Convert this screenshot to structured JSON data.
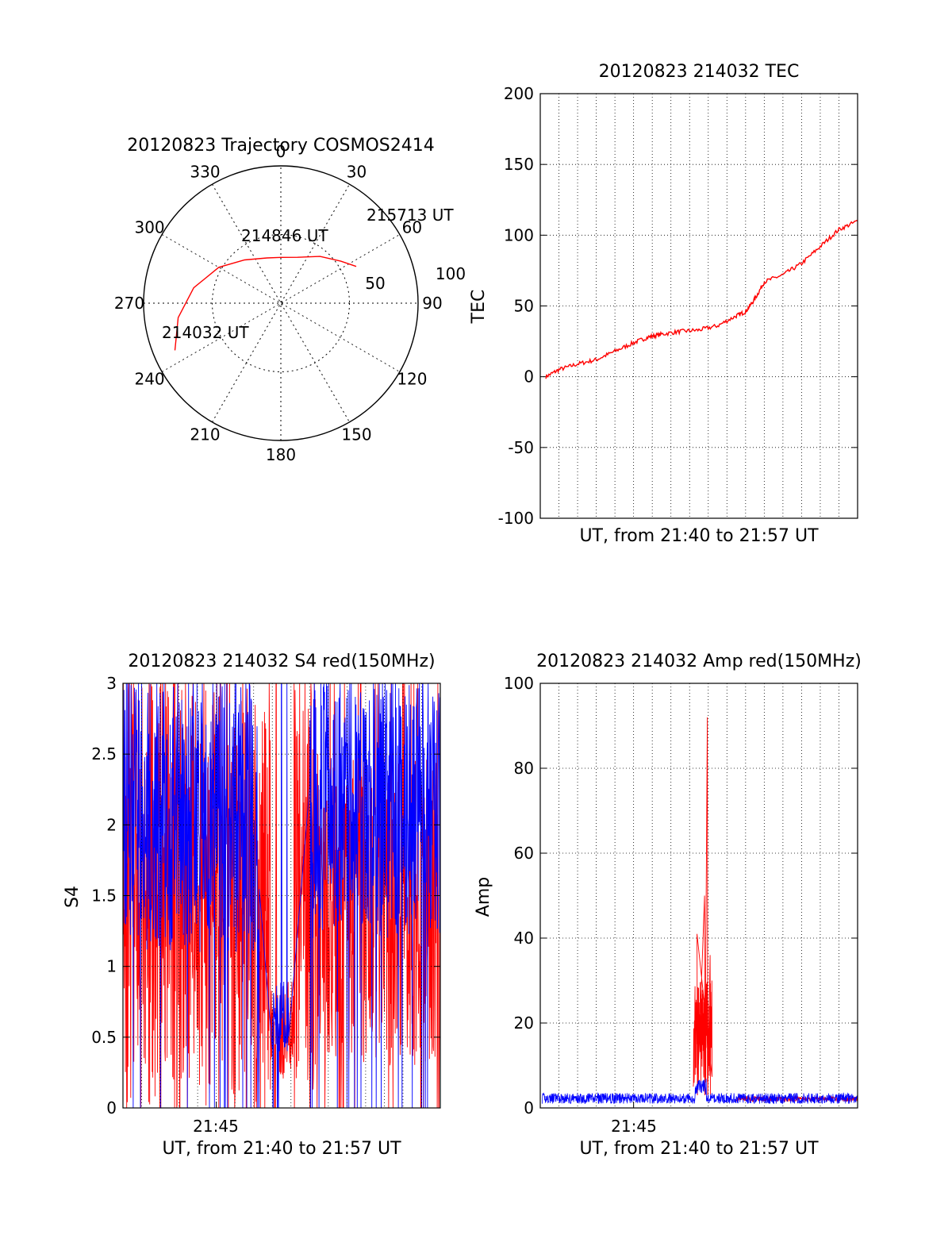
{
  "colors": {
    "red": "#ff0000",
    "blue": "#0000ff",
    "axis": "#000000",
    "grid": "#000000"
  },
  "chart_data": [
    {
      "type": "polar",
      "title": "20120823 Trajectory COSMOS2414",
      "angle_labels": [
        "0",
        "30",
        "60",
        "90",
        "120",
        "150",
        "180",
        "210",
        "240",
        "270",
        "300",
        "330"
      ],
      "radial_labels": [
        "50",
        "100"
      ],
      "grid": "dotted",
      "trajectory": {
        "points": [
          {
            "az": 246,
            "el": 14,
            "label": "214032 UT"
          },
          {
            "az": 262,
            "el": 22
          },
          {
            "az": 280,
            "el": 32
          },
          {
            "az": 300,
            "el": 43
          },
          {
            "az": 320,
            "el": 53
          },
          {
            "az": 343,
            "el": 59
          },
          {
            "az": 0,
            "el": 60
          },
          {
            "az": 20,
            "el": 58
          },
          {
            "az": 40,
            "el": 50
          },
          {
            "az": 55,
            "el": 42
          },
          {
            "az": 64,
            "el": 35,
            "label": "215713 UT"
          }
        ],
        "mid_label": "214846 UT",
        "color": "red"
      }
    },
    {
      "type": "line",
      "title": "20120823 214032 TEC",
      "xlabel": "UT, from 21:40 to 21:57 UT",
      "ylabel": "TEC",
      "ylim": [
        -100,
        200
      ],
      "yticks": [
        -100,
        -50,
        0,
        50,
        100,
        150,
        200
      ],
      "xlim_minutes": [
        0,
        17
      ],
      "grid": "dotted",
      "series": [
        {
          "color": "red",
          "x_minutes": [
            0.3,
            1.0,
            2.0,
            3.0,
            4.0,
            5.0,
            5.8,
            6.5,
            7.5,
            8.5,
            9.5,
            10.5,
            11.0,
            11.5,
            12.0,
            13.0,
            14.0,
            15.0,
            16.0,
            17.0
          ],
          "values": [
            0,
            5,
            9,
            12,
            18,
            24,
            28,
            30,
            32,
            33,
            36,
            43,
            46,
            55,
            67,
            72,
            80,
            92,
            104,
            110
          ]
        }
      ]
    },
    {
      "type": "line",
      "title": "20120823 214032 S4 red(150MHz)",
      "xlabel": "UT, from 21:40 to 21:57 UT",
      "ylabel": "S4",
      "ylim": [
        0,
        3
      ],
      "yticks": [
        "0",
        "0.5",
        "1",
        "1.5",
        "2",
        "2.5",
        "3"
      ],
      "xticks": [
        {
          "minute": 5,
          "label": "21:45"
        }
      ],
      "xlim_minutes": [
        0,
        17
      ],
      "grid": "dotted",
      "series": [
        {
          "color": "red",
          "style": "dense-noise",
          "segments": [
            [
              0,
              7.9,
              0.0,
              3.0
            ],
            [
              7.9,
              9.2,
              0.2,
              0.9
            ],
            [
              9.2,
              10.3,
              0.0,
              3.0
            ],
            [
              10.3,
              17,
              0.3,
              2.5
            ]
          ]
        },
        {
          "color": "blue",
          "style": "dense-noise",
          "segments": [
            [
              0,
              7.3,
              1.1,
              3.0
            ],
            [
              8.0,
              8.9,
              0.4,
              0.9
            ],
            [
              10.0,
              17,
              1.2,
              3.0
            ]
          ]
        }
      ]
    },
    {
      "type": "line",
      "title": "20120823 214032 Amp red(150MHz)",
      "xlabel": "UT, from 21:40 to 21:57 UT",
      "ylabel": "Amp",
      "ylim": [
        0,
        100
      ],
      "yticks": [
        0,
        20,
        40,
        60,
        80,
        100
      ],
      "xticks": [
        {
          "minute": 5,
          "label": "21:45"
        }
      ],
      "xlim_minutes": [
        0,
        17
      ],
      "grid": "dotted",
      "series": [
        {
          "color": "red",
          "peaks": [
            {
              "x_minutes": 8.4,
              "value": 41
            },
            {
              "x_minutes": 8.8,
              "value": 50
            },
            {
              "x_minutes": 8.95,
              "value": 92
            },
            {
              "x_minutes": 9.1,
              "value": 36
            }
          ],
          "baseline": 1.5
        },
        {
          "color": "blue",
          "baseline": 2,
          "noise": 2.5
        }
      ]
    }
  ]
}
